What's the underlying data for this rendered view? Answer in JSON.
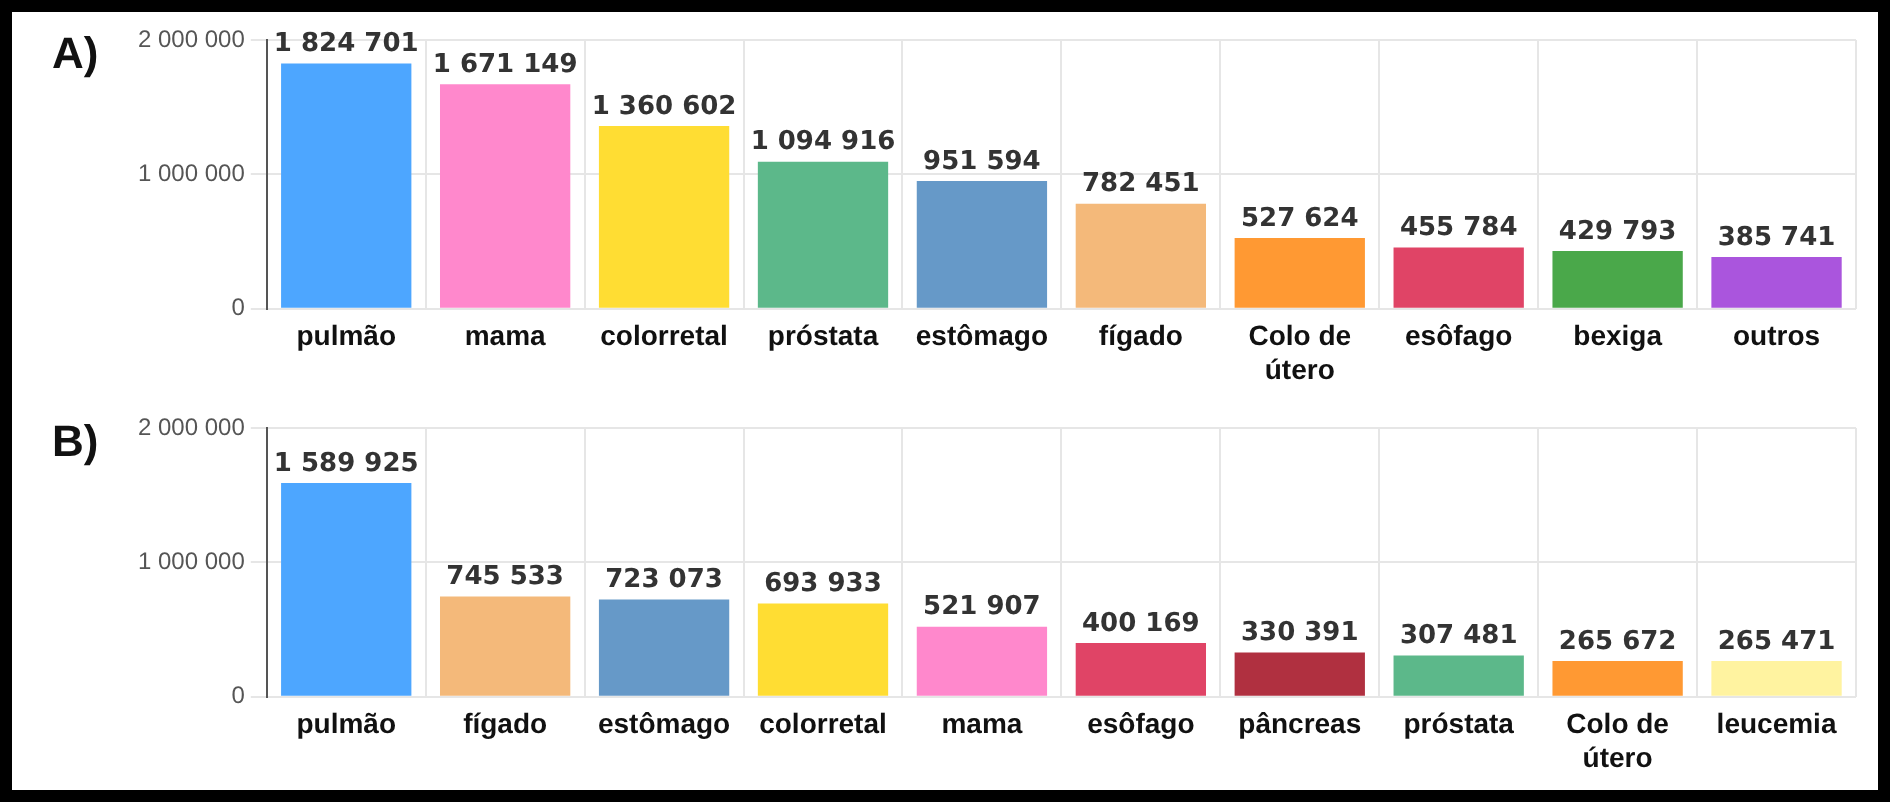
{
  "chart_data": [
    {
      "type": "bar",
      "title": "A)",
      "categories": [
        "pulmão",
        "mama",
        "colorretal",
        "próstata",
        "estômago",
        "fígado",
        "Colo de útero",
        "esôfago",
        "bexiga",
        "outros"
      ],
      "values": [
        1824701,
        1671149,
        1360602,
        1094916,
        951594,
        782451,
        527624,
        455784,
        429793,
        385741
      ],
      "colors": [
        "#4da6ff",
        "#ff88cc",
        "#ffdd33",
        "#5cb88a",
        "#6699c8",
        "#f4b97a",
        "#ff9933",
        "#e04466",
        "#4aa84a",
        "#aa55dd"
      ],
      "value_labels": [
        "1 824 701",
        "1 671 149",
        "1 360 602",
        "1 094 916",
        "951 594",
        "782 451",
        "527 624",
        "455 784",
        "429 793",
        "385 741"
      ],
      "ylim": [
        0,
        2000000
      ],
      "yticks": [
        {
          "value": 0,
          "label": "0"
        },
        {
          "value": 1000000,
          "label": "1 000 000"
        },
        {
          "value": 2000000,
          "label": "2 000 000"
        }
      ],
      "grid": true
    },
    {
      "type": "bar",
      "title": "B)",
      "categories": [
        "pulmão",
        "fígado",
        "estômago",
        "colorretal",
        "mama",
        "esôfago",
        "pâncreas",
        "próstata",
        "Colo de útero",
        "leucemia"
      ],
      "values": [
        1589925,
        745533,
        723073,
        693933,
        521907,
        400169,
        330391,
        307481,
        265672,
        265471
      ],
      "colors": [
        "#4da6ff",
        "#f4b97a",
        "#6699c8",
        "#ffdd33",
        "#ff88cc",
        "#e04466",
        "#b03040",
        "#5cb88a",
        "#ff9933",
        "#fff3a0"
      ],
      "value_labels": [
        "1 589 925",
        "745 533",
        "723 073",
        "693 933",
        "521 907",
        "400 169",
        "330 391",
        "307 481",
        "265 672",
        "265 471"
      ],
      "ylim": [
        0,
        2000000
      ],
      "yticks": [
        {
          "value": 0,
          "label": "0"
        },
        {
          "value": 1000000,
          "label": "1 000 000"
        },
        {
          "value": 2000000,
          "label": "2 000 000"
        }
      ],
      "grid": true
    }
  ]
}
